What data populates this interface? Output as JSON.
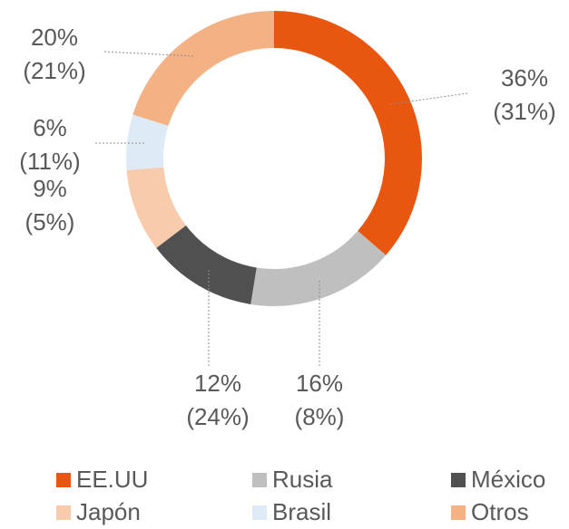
{
  "chart_data": {
    "type": "donut",
    "categories": [
      "EE.UU",
      "Rusia",
      "México",
      "Japón",
      "Brasil",
      "Otros"
    ],
    "values": [
      36,
      16,
      12,
      9,
      6,
      20
    ],
    "value_labels": [
      "36%",
      "16%",
      "12%",
      "9%",
      "6%",
      "20%"
    ],
    "comparison_labels": [
      "(31%)",
      "(8%)",
      "(24%)",
      "(5%)",
      "(11%)",
      "(21%)"
    ],
    "colors": [
      "#e8560f",
      "#bfbfbf",
      "#505050",
      "#f8cbad",
      "#deebf7",
      "#f4b183"
    ],
    "legend": "bottom"
  }
}
